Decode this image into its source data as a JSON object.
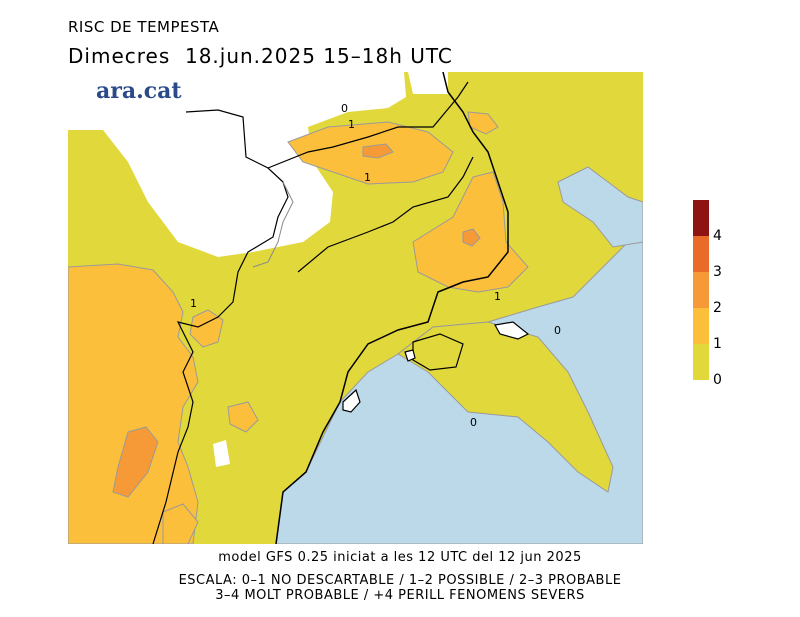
{
  "header": {
    "title": "RISC DE TEMPESTA",
    "subtitle": "Dimecres  18.jun.2025 15–18h UTC"
  },
  "logo": {
    "text": "ara.cat"
  },
  "footer": {
    "model_line": "model GFS 0.25 iniciat a les 12 UTC del 12 jun 2025",
    "scale_line1": "ESCALA: 0–1 NO DESCARTABLE / 1–2 POSSIBLE / 2–3 PROBABLE",
    "scale_line2": "3–4 MOLT PROBABLE / +4 PERILL FENOMENS SEVERS"
  },
  "legend": {
    "levels": [
      "0",
      "1",
      "2",
      "3",
      "4"
    ],
    "colors": {
      "0-1": "#e1d83c",
      "1-2": "#fbbf3c",
      "2-3": "#f59a36",
      "3-4": "#ea6a2a",
      "4+": "#8e1414"
    }
  },
  "map": {
    "contour_labels": [
      "0",
      "1",
      "1",
      "1",
      "1",
      "0",
      "0"
    ],
    "colors": {
      "sea": "#bcd9ea",
      "no_data": "#ffffff",
      "risk_low": "#e1d83c",
      "risk_possible": "#fbbf3c",
      "risk_probable": "#f59a36"
    }
  }
}
